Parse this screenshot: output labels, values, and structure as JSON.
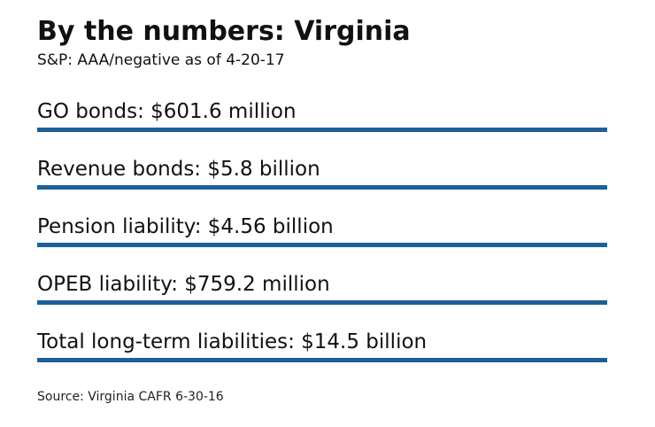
{
  "title": "By the numbers: Virginia",
  "subtitle": "S&P: AAA/negative as of 4-20-17",
  "source": "Source: Virginia CAFR 6-30-16",
  "colors": {
    "bar": "#1f5f99",
    "text": "#111111"
  },
  "items": [
    {
      "label": "GO bonds: $601.6 million"
    },
    {
      "label": "Revenue bonds: $5.8 billion"
    },
    {
      "label": "Pension liability: $4.56 billion"
    },
    {
      "label": "OPEB liability: $759.2 million"
    },
    {
      "label": "Total long-term liabilities: $14.5 billion"
    }
  ],
  "chart_data": {
    "type": "table",
    "title": "By the numbers: Virginia",
    "subtitle": "S&P: AAA/negative as of 4-20-17",
    "categories": [
      "GO bonds",
      "Revenue bonds",
      "Pension liability",
      "OPEB liability",
      "Total long-term liabilities"
    ],
    "values": [
      "$601.6 million",
      "$5.8 billion",
      "$4.56 billion",
      "$759.2 million",
      "$14.5 billion"
    ],
    "source": "Source: Virginia CAFR 6-30-16"
  }
}
